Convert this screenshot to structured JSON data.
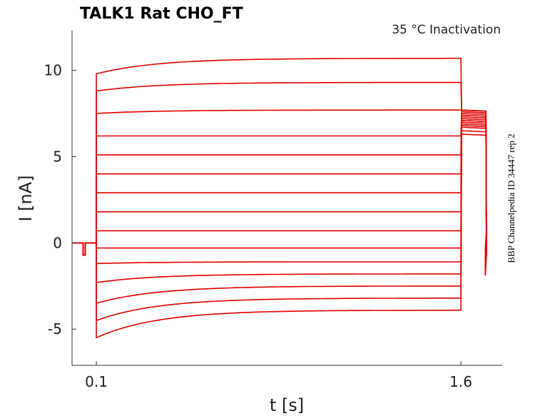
{
  "chart_data": {
    "type": "line",
    "title": "TALK1  Rat  CHO_FT",
    "subtitle": "35 °C  Inactivation",
    "side_note": "BBP Channelpedia ID 34447 rep 2",
    "xlabel": "t [s]",
    "ylabel": "I [nA]",
    "xlim": [
      -0.0,
      1.77
    ],
    "ylim": [
      -7.1,
      12.3
    ],
    "xticks": [
      {
        "value": 0.1,
        "label": "0.1"
      },
      {
        "value": 1.6,
        "label": "1.6"
      }
    ],
    "yticks": [
      {
        "value": 10,
        "label": "10"
      },
      {
        "value": 5,
        "label": "5"
      },
      {
        "value": 0,
        "label": "0"
      },
      {
        "value": -5,
        "label": "-5"
      }
    ],
    "grid": false,
    "line_color": "#e00000",
    "protocol": {
      "baseline": 0.0,
      "dip_start": 0.045,
      "dip_end": 0.055,
      "dip_value": -0.7,
      "step_start": 0.1,
      "step_end": 1.6,
      "tail_end": 1.7
    },
    "series": [
      {
        "start": 9.8,
        "end": 10.7,
        "tail": 7.6,
        "tail_end_value": -0.4
      },
      {
        "start": 8.8,
        "end": 9.3,
        "tail": 7.7,
        "tail_end_value": -0.6
      },
      {
        "start": 7.5,
        "end": 7.7,
        "tail": 7.7,
        "tail_end_value": -0.8
      },
      {
        "start": 6.2,
        "end": 6.2,
        "tail": 7.6,
        "tail_end_value": -1.0
      },
      {
        "start": 5.1,
        "end": 5.1,
        "tail": 7.5,
        "tail_end_value": -1.1
      },
      {
        "start": 4.0,
        "end": 4.0,
        "tail": 7.4,
        "tail_end_value": -1.2
      },
      {
        "start": 2.9,
        "end": 2.9,
        "tail": 7.3,
        "tail_end_value": -1.3
      },
      {
        "start": 1.8,
        "end": 1.8,
        "tail": 7.2,
        "tail_end_value": -1.4
      },
      {
        "start": 0.7,
        "end": 0.7,
        "tail": 7.1,
        "tail_end_value": -1.5
      },
      {
        "start": -0.3,
        "end": -0.3,
        "tail": 7.0,
        "tail_end_value": -1.6
      },
      {
        "start": -1.2,
        "end": -1.1,
        "tail": 6.9,
        "tail_end_value": -1.7
      },
      {
        "start": -2.3,
        "end": -1.8,
        "tail": 6.8,
        "tail_end_value": -1.75
      },
      {
        "start": -3.5,
        "end": -2.5,
        "tail": 6.7,
        "tail_end_value": -1.8
      },
      {
        "start": -4.5,
        "end": -3.2,
        "tail": 6.5,
        "tail_end_value": -1.85
      },
      {
        "start": -5.5,
        "end": -3.9,
        "tail": 6.3,
        "tail_end_value": -1.9
      }
    ]
  }
}
